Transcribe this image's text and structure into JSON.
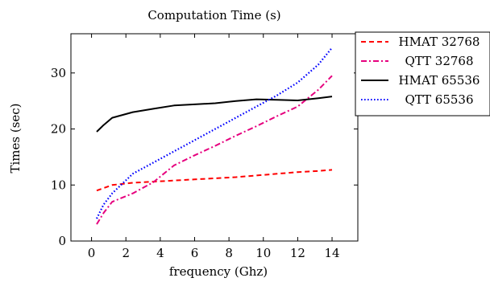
{
  "chart_data": {
    "type": "line",
    "title": "Computation Time (s)",
    "xlabel": "frequency (Ghz)",
    "ylabel": "Times (sec)",
    "xlim": [
      -1.2,
      15.5
    ],
    "ylim": [
      0,
      37
    ],
    "xticks": [
      0,
      2,
      4,
      6,
      8,
      10,
      12,
      14
    ],
    "yticks": [
      0,
      10,
      20,
      30
    ],
    "grid": false,
    "legend_position": "top-right",
    "series": [
      {
        "name": "HMAT 32768",
        "color": "#ff0000",
        "style": "dashed",
        "x": [
          0.3,
          1.2,
          2.4,
          3.6,
          4.8,
          6.0,
          7.2,
          8.4,
          9.6,
          10.8,
          12.0,
          13.2,
          14.0
        ],
        "y": [
          9.0,
          10.0,
          10.4,
          10.6,
          10.8,
          11.0,
          11.2,
          11.4,
          11.7,
          12.0,
          12.3,
          12.5,
          12.7
        ]
      },
      {
        "name": "QTT 32768",
        "color": "#e6007e",
        "style": "dashdot",
        "x": [
          0.3,
          0.7,
          1.2,
          2.4,
          3.6,
          4.8,
          6.0,
          7.2,
          8.4,
          9.6,
          10.8,
          12.0,
          13.2,
          14.0
        ],
        "y": [
          3.0,
          5.0,
          7.0,
          8.5,
          10.5,
          13.5,
          15.3,
          17.0,
          18.8,
          20.5,
          22.3,
          24.0,
          27.0,
          29.5
        ]
      },
      {
        "name": "HMAT 65536",
        "color": "#000000",
        "style": "solid",
        "x": [
          0.3,
          0.7,
          1.2,
          2.4,
          3.6,
          4.8,
          6.0,
          7.2,
          8.4,
          9.6,
          10.8,
          12.0,
          13.2,
          14.0
        ],
        "y": [
          19.5,
          20.7,
          22.0,
          23.0,
          23.6,
          24.2,
          24.4,
          24.6,
          25.0,
          25.3,
          25.2,
          25.1,
          25.5,
          25.8
        ]
      },
      {
        "name": "QTT 65536",
        "color": "#0000ff",
        "style": "dotted",
        "x": [
          0.3,
          0.7,
          1.2,
          2.4,
          3.6,
          4.8,
          6.0,
          7.2,
          8.4,
          9.6,
          10.8,
          12.0,
          13.2,
          14.0
        ],
        "y": [
          4.0,
          6.5,
          8.5,
          12.0,
          14.0,
          16.0,
          18.0,
          20.0,
          22.0,
          24.0,
          26.0,
          28.3,
          31.5,
          34.5
        ]
      }
    ]
  }
}
